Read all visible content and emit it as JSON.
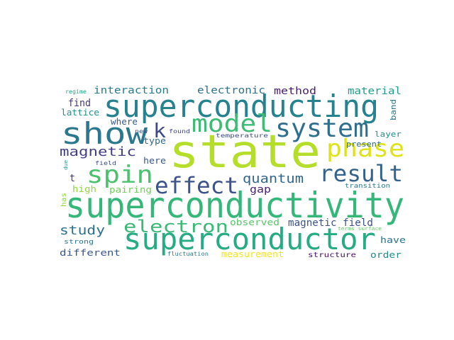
{
  "word_cloud": {
    "words": [
      {
        "text": "state",
        "color": "#b5de2b"
      },
      {
        "text": "superconductivity",
        "color": "#35b779"
      },
      {
        "text": "superconducting",
        "color": "#26828e"
      },
      {
        "text": "superconductor",
        "color": "#25ac82"
      },
      {
        "text": "show",
        "color": "#2a788e"
      },
      {
        "text": "system",
        "color": "#2e6f8e"
      },
      {
        "text": "model",
        "color": "#3dbc74"
      },
      {
        "text": "phase",
        "color": "#dde318"
      },
      {
        "text": "spin",
        "color": "#4ac16d"
      },
      {
        "text": "effect",
        "color": "#3b528b"
      },
      {
        "text": "result",
        "color": "#33638d"
      },
      {
        "text": "electron",
        "color": "#3aba76"
      },
      {
        "text": "k",
        "color": "#3e4989"
      },
      {
        "text": "magnetic",
        "color": "#433e85"
      },
      {
        "text": "quantum",
        "color": "#31668e"
      },
      {
        "text": "study",
        "color": "#2d708e"
      },
      {
        "text": "magnetic field",
        "color": "#3b528b"
      },
      {
        "text": "interaction",
        "color": "#287d8e"
      },
      {
        "text": "electronic",
        "color": "#2c728e"
      },
      {
        "text": "method",
        "color": "#481f70"
      },
      {
        "text": "material",
        "color": "#1f9e89"
      },
      {
        "text": "find",
        "color": "#453781"
      },
      {
        "text": "lattice",
        "color": "#20928c"
      },
      {
        "text": "where",
        "color": "#365c8d"
      },
      {
        "text": "type",
        "color": "#31688e"
      },
      {
        "text": "here",
        "color": "#39568c"
      },
      {
        "text": "gap",
        "color": "#482374"
      },
      {
        "text": "t",
        "color": "#46307e"
      },
      {
        "text": "high",
        "color": "#8fd744"
      },
      {
        "text": "pairing",
        "color": "#6ece58"
      },
      {
        "text": "present",
        "color": "#2f6c8e"
      },
      {
        "text": "observed",
        "color": "#56c667"
      },
      {
        "text": "different",
        "color": "#39568c"
      },
      {
        "text": "order",
        "color": "#228b8d"
      },
      {
        "text": "have",
        "color": "#2a768e"
      },
      {
        "text": "measurement",
        "color": "#f1e51d"
      },
      {
        "text": "structure",
        "color": "#471063"
      },
      {
        "text": "fluctuation",
        "color": "#2a788e"
      },
      {
        "text": "strong",
        "color": "#2c738e"
      },
      {
        "text": "transition",
        "color": "#2a788e"
      },
      {
        "text": "layer",
        "color": "#218f8d"
      },
      {
        "text": "band",
        "color": "#2c728e"
      },
      {
        "text": "has",
        "color": "#8fd744"
      },
      {
        "text": "regime",
        "color": "#20a386"
      },
      {
        "text": "new",
        "color": "#3b528b"
      },
      {
        "text": "found",
        "color": "#414487"
      },
      {
        "text": "temperature",
        "color": "#3e4a89"
      },
      {
        "text": "field",
        "color": "#3e4989"
      },
      {
        "text": "due",
        "color": "#1fa187"
      },
      {
        "text": "terms surface",
        "color": "#5ec962"
      }
    ]
  }
}
